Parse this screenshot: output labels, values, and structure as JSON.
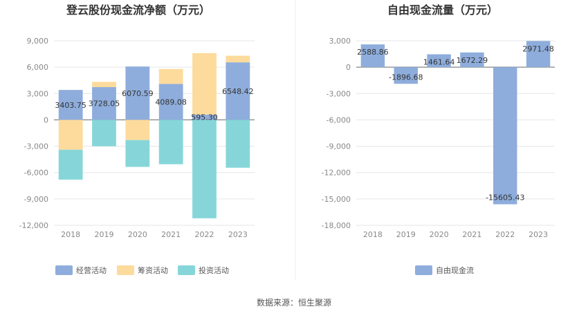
{
  "source_note": "数据来源：恒生聚源",
  "chart_data": [
    {
      "type": "bar",
      "stacked": true,
      "title": "登云股份现金流净额（万元）",
      "categories": [
        "2018",
        "2019",
        "2020",
        "2021",
        "2022",
        "2023"
      ],
      "ylim": [
        -12000,
        9000
      ],
      "yticks": [
        9000,
        6000,
        3000,
        0,
        -3000,
        -6000,
        -9000,
        -12000
      ],
      "ytick_labels": [
        "9,000",
        "6,000",
        "3,000",
        "0",
        "-3,000",
        "-6,000",
        "-9,000",
        "-12,000"
      ],
      "grid": true,
      "legend_position": "bottom",
      "series": [
        {
          "name": "经营活动",
          "color": "#8eaddc",
          "values": [
            3403.75,
            3728.05,
            6070.59,
            4089.08,
            595.3,
            6548.42
          ],
          "labels": [
            "3403.75",
            "3728.05",
            "6070.59",
            "4089.08",
            "595.30",
            "6548.42"
          ]
        },
        {
          "name": "筹资活动",
          "color": "#fddb9c",
          "values": [
            -3400,
            600,
            -2300,
            1700,
            7000,
            750
          ]
        },
        {
          "name": "投资活动",
          "color": "#86d6d9",
          "values": [
            -3400,
            -3000,
            -3050,
            -5050,
            -11200,
            -5450
          ]
        }
      ]
    },
    {
      "type": "bar",
      "title": "自由现金流量（万元）",
      "categories": [
        "2018",
        "2019",
        "2020",
        "2021",
        "2022",
        "2023"
      ],
      "ylim": [
        -18000,
        3000
      ],
      "yticks": [
        3000,
        0,
        -3000,
        -6000,
        -9000,
        -12000,
        -15000,
        -18000
      ],
      "ytick_labels": [
        "3,000",
        "0",
        "-3,000",
        "-6,000",
        "-9,000",
        "-12,000",
        "-15,000",
        "-18,000"
      ],
      "grid": true,
      "legend_position": "bottom",
      "series": [
        {
          "name": "自由现金流",
          "color": "#8eaddc",
          "values": [
            2588.86,
            -1896.68,
            1461.64,
            1672.29,
            -15605.43,
            2971.48
          ],
          "labels": [
            "2588.86",
            "-1896.68",
            "1461.64",
            "1672.29",
            "-15605.43",
            "2971.48"
          ]
        }
      ]
    }
  ]
}
